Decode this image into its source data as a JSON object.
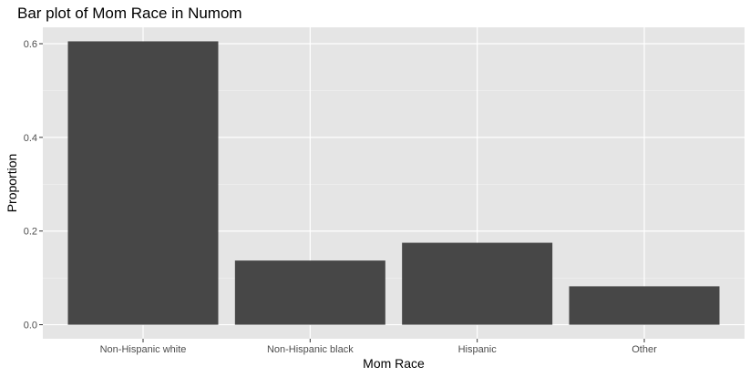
{
  "chart_data": {
    "type": "bar",
    "title": "Bar plot of Mom Race in Numom",
    "xlabel": "Mom Race",
    "ylabel": "Proportion",
    "categories": [
      "Non-Hispanic white",
      "Non-Hispanic black",
      "Hispanic",
      "Other"
    ],
    "values": [
      0.605,
      0.137,
      0.175,
      0.082
    ],
    "ylim": [
      -0.03,
      0.635
    ],
    "yticks": [
      0.0,
      0.2,
      0.4,
      0.6
    ],
    "ytick_labels": [
      "0.0",
      "0.2",
      "0.4",
      "0.6"
    ],
    "grid": true,
    "legend": "none",
    "colors": {
      "bar": "#474747",
      "panel_background": "#e5e5e5",
      "grid_major": "#ffffff",
      "grid_minor": "#f2f2f2"
    }
  }
}
